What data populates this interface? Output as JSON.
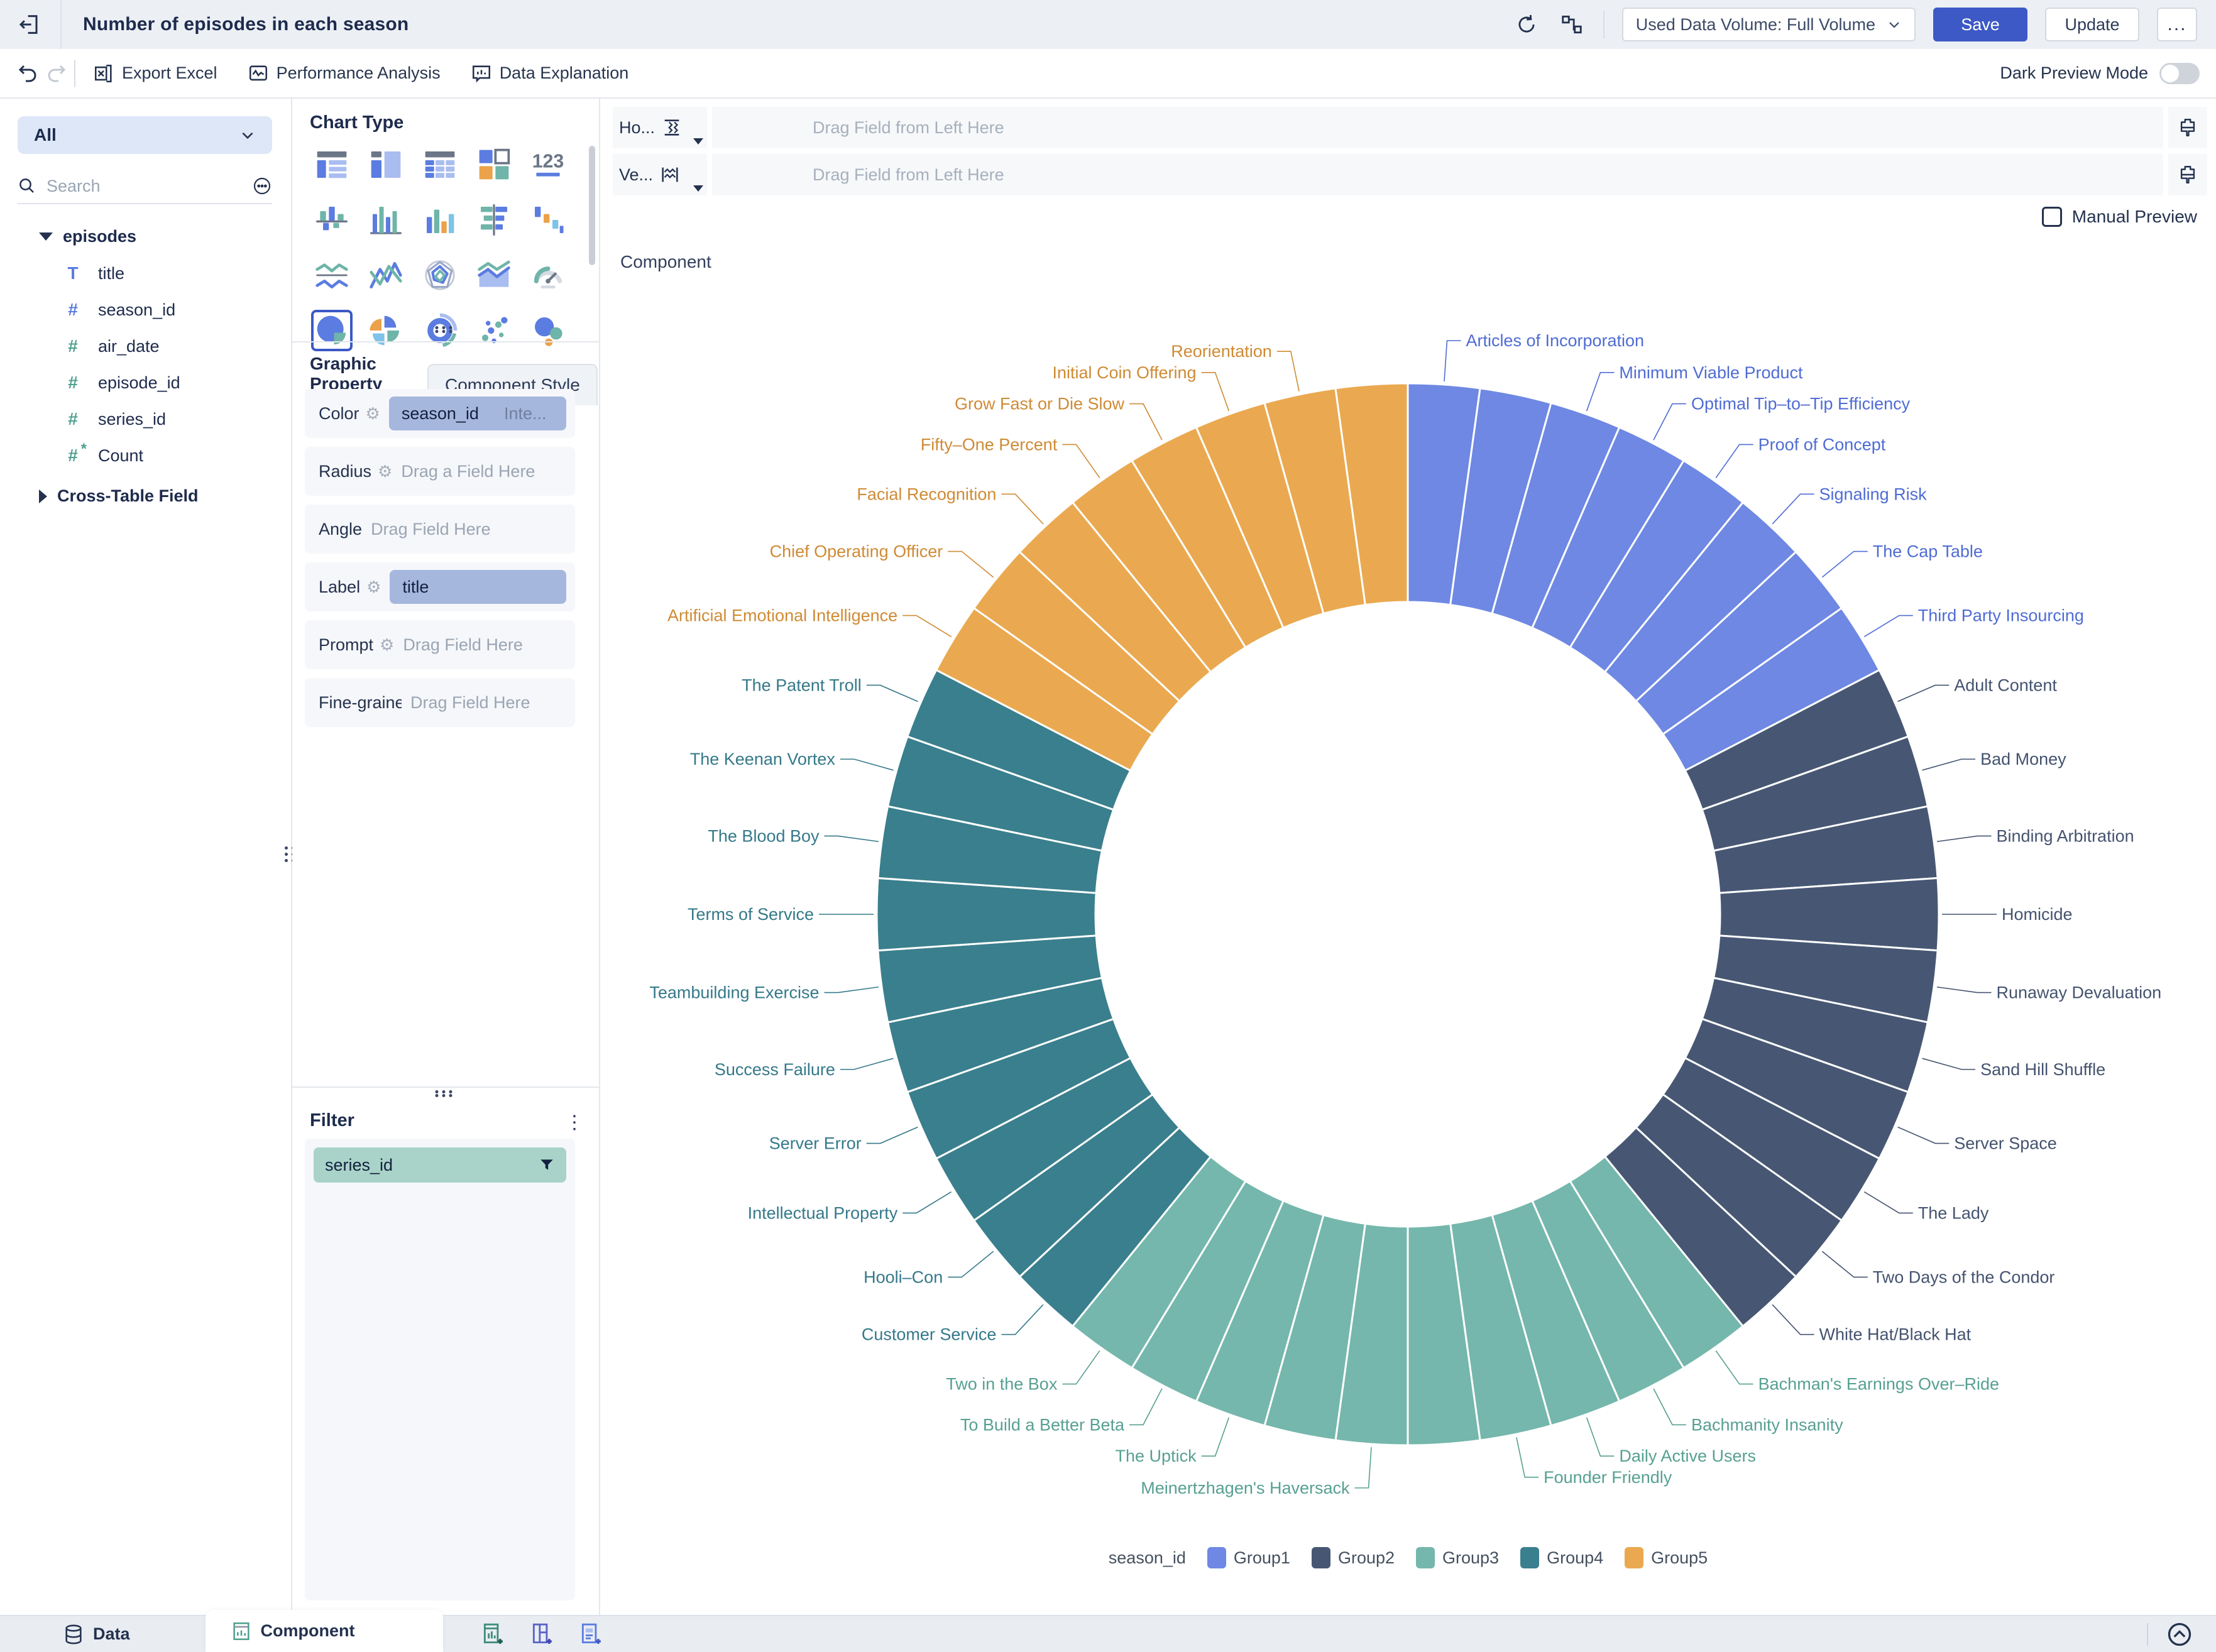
{
  "topbar": {
    "title": "Number of episodes in each season",
    "data_volume": "Used Data Volume: Full Volume",
    "save_label": "Save",
    "update_label": "Update",
    "more_label": "..."
  },
  "toolbar": {
    "export_excel": "Export Excel",
    "performance_analysis": "Performance Analysis",
    "data_explanation": "Data Explanation",
    "dark_preview_mode": "Dark Preview Mode"
  },
  "sidebar": {
    "all_label": "All",
    "search_placeholder": "Search",
    "table_name": "episodes",
    "fields": [
      {
        "name": "title",
        "icon": "text-field-icon",
        "glyph": "T",
        "color": "#5b7ce0"
      },
      {
        "name": "season_id",
        "icon": "number-field-icon",
        "glyph": "#",
        "color": "#5b7ce0"
      },
      {
        "name": "air_date",
        "icon": "number-field-icon",
        "glyph": "#",
        "color": "#4fa08f"
      },
      {
        "name": "episode_id",
        "icon": "number-field-icon",
        "glyph": "#",
        "color": "#4fa08f"
      },
      {
        "name": "series_id",
        "icon": "number-field-icon",
        "glyph": "#",
        "color": "#4fa08f"
      },
      {
        "name": "Count",
        "icon": "calc-field-icon",
        "glyph": "#",
        "color": "#4fa08f",
        "asterisk": "*"
      }
    ],
    "cross_table_label": "Cross-Table Field"
  },
  "config": {
    "chart_type_title": "Chart Type",
    "chart_types": [
      "table-grouped",
      "table-detail",
      "cross-table",
      "dashboard",
      "kpi-card",
      "stacked-column",
      "multi-column",
      "column",
      "stacked-bar",
      "waterfall",
      "line",
      "sharp-line",
      "radar",
      "area",
      "gauge",
      "pie",
      "quadrant-pie",
      "donut",
      "scatter",
      "bubble"
    ],
    "selected_chart_type": 15,
    "tabs": {
      "active": "Graphic Property",
      "inactive": "Component Style"
    },
    "properties": [
      {
        "label": "Color",
        "gear": true,
        "pill": "season_id",
        "pill_extra": "Inte..."
      },
      {
        "label": "Radius",
        "gear": true,
        "placeholder": "Drag a Field Here"
      },
      {
        "label": "Angle",
        "gear": false,
        "placeholder": "Drag Field Here"
      },
      {
        "label": "Label",
        "gear": true,
        "pill": "title"
      },
      {
        "label": "Prompt",
        "gear": true,
        "placeholder": "Drag Field Here"
      },
      {
        "label": "Fine-graine",
        "gear": false,
        "placeholder": "Drag Field Here"
      }
    ],
    "filter_title": "Filter",
    "filter_pill": "series_id"
  },
  "main": {
    "shelves": [
      {
        "label": "Ho...",
        "icon": "horizontal-axis-icon",
        "placeholder": "Drag Field from Left Here"
      },
      {
        "label": "Ve...",
        "icon": "vertical-axis-icon",
        "placeholder": "Drag Field from Left Here"
      }
    ],
    "manual_preview_label": "Manual Preview",
    "canvas_label": "Component"
  },
  "bottombar": {
    "data_tab": "Data",
    "component_tab": "Component"
  },
  "chart_data": {
    "type": "pie",
    "subtype": "donut",
    "color_field": "season_id",
    "label_field": "title",
    "slice_value": 1,
    "start_angle_deg": 0,
    "direction": "clockwise",
    "inner_radius_ratio": 0.588,
    "legend_title": "season_id",
    "legend_position": "bottom",
    "groups": [
      {
        "name": "Group1",
        "color": "#6e88e3",
        "label_color": "#4f6cd3",
        "slices": [
          {
            "label": "Articles of Incorporation",
            "label_visible": true
          },
          {
            "label": "",
            "label_visible": false
          },
          {
            "label": "Minimum Viable Product",
            "label_visible": true
          },
          {
            "label": "Optimal Tip–to–Tip Efficiency",
            "label_visible": true
          },
          {
            "label": "Proof of Concept",
            "label_visible": true
          },
          {
            "label": "Signaling Risk",
            "label_visible": true
          },
          {
            "label": "The Cap Table",
            "label_visible": true
          },
          {
            "label": "Third Party Insourcing",
            "label_visible": true
          }
        ]
      },
      {
        "name": "Group2",
        "color": "#475773",
        "label_color": "#44536f",
        "slices": [
          {
            "label": "Adult Content",
            "label_visible": true
          },
          {
            "label": "Bad Money",
            "label_visible": true
          },
          {
            "label": "Binding Arbitration",
            "label_visible": true
          },
          {
            "label": "Homicide",
            "label_visible": true
          },
          {
            "label": "Runaway Devaluation",
            "label_visible": true
          },
          {
            "label": "Sand Hill Shuffle",
            "label_visible": true
          },
          {
            "label": "Server Space",
            "label_visible": true
          },
          {
            "label": "The Lady",
            "label_visible": true
          },
          {
            "label": "Two Days of the Condor",
            "label_visible": true
          },
          {
            "label": "White Hat/Black Hat",
            "label_visible": true
          }
        ]
      },
      {
        "name": "Group3",
        "color": "#75b7ac",
        "label_color": "#57a092",
        "slices": [
          {
            "label": "Bachman's Earnings Over–Ride",
            "label_visible": true
          },
          {
            "label": "Bachmanity Insanity",
            "label_visible": true
          },
          {
            "label": "Daily Active Users",
            "label_visible": true
          },
          {
            "label": "Founder Friendly",
            "label_visible": true
          },
          {
            "label": "",
            "label_visible": false
          },
          {
            "label": "Meinertzhagen's Haversack",
            "label_visible": true
          },
          {
            "label": "",
            "label_visible": false
          },
          {
            "label": "The Uptick",
            "label_visible": true
          },
          {
            "label": "To Build a Better Beta",
            "label_visible": true
          },
          {
            "label": "Two in the Box",
            "label_visible": true
          }
        ]
      },
      {
        "name": "Group4",
        "color": "#3a7f8d",
        "label_color": "#35798a",
        "slices": [
          {
            "label": "Customer Service",
            "label_visible": true
          },
          {
            "label": "Hooli–Con",
            "label_visible": true
          },
          {
            "label": "Intellectual Property",
            "label_visible": true
          },
          {
            "label": "Server Error",
            "label_visible": true
          },
          {
            "label": "Success Failure",
            "label_visible": true
          },
          {
            "label": "Teambuilding Exercise",
            "label_visible": true
          },
          {
            "label": "Terms of Service",
            "label_visible": true
          },
          {
            "label": "The Blood Boy",
            "label_visible": true
          },
          {
            "label": "The Keenan Vortex",
            "label_visible": true
          },
          {
            "label": "The Patent Troll",
            "label_visible": true
          }
        ]
      },
      {
        "name": "Group5",
        "color": "#eaa950",
        "label_color": "#cf8b35",
        "slices": [
          {
            "label": "Artificial Emotional Intelligence",
            "label_visible": true
          },
          {
            "label": "Chief Operating Officer",
            "label_visible": true
          },
          {
            "label": "Facial Recognition",
            "label_visible": true
          },
          {
            "label": "Fifty–One Percent",
            "label_visible": true
          },
          {
            "label": "Grow Fast or Die Slow",
            "label_visible": true
          },
          {
            "label": "Initial Coin Offering",
            "label_visible": true
          },
          {
            "label": "Reorientation",
            "label_visible": true
          },
          {
            "label": "",
            "label_visible": false
          }
        ]
      }
    ]
  }
}
